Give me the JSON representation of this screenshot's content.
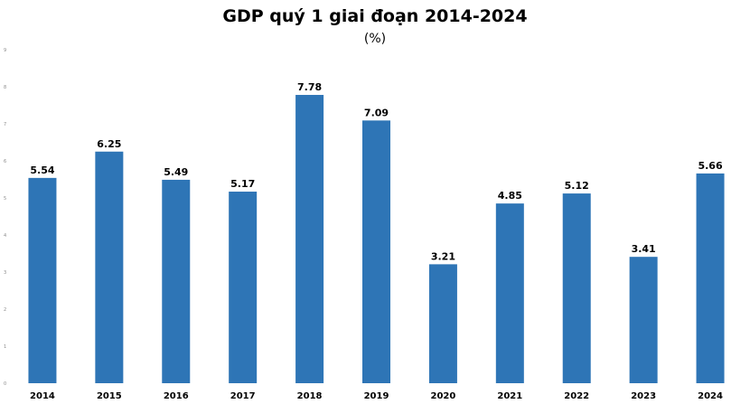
{
  "chart_data": {
    "type": "bar",
    "title": "GDP quý 1 giai đoạn 2014-2024",
    "subtitle": "(%)",
    "categories": [
      "2014",
      "2015",
      "2016",
      "2017",
      "2018",
      "2019",
      "2020",
      "2021",
      "2022",
      "2023",
      "2024"
    ],
    "values": [
      5.54,
      6.25,
      5.49,
      5.17,
      7.78,
      7.09,
      3.21,
      4.85,
      5.12,
      3.41,
      5.66
    ],
    "data_labels": [
      "5.54",
      "6.25",
      "5.49",
      "5.17",
      "7.78",
      "7.09",
      "3.21",
      "4.85",
      "5.12",
      "3.41",
      "5.66"
    ],
    "y_ticks": [
      "0",
      "1",
      "2",
      "3",
      "4",
      "5",
      "6",
      "7",
      "8",
      "9"
    ],
    "ylim": [
      0,
      9
    ],
    "grid": false,
    "legend": "none",
    "bar_color": "#2e75b6"
  }
}
